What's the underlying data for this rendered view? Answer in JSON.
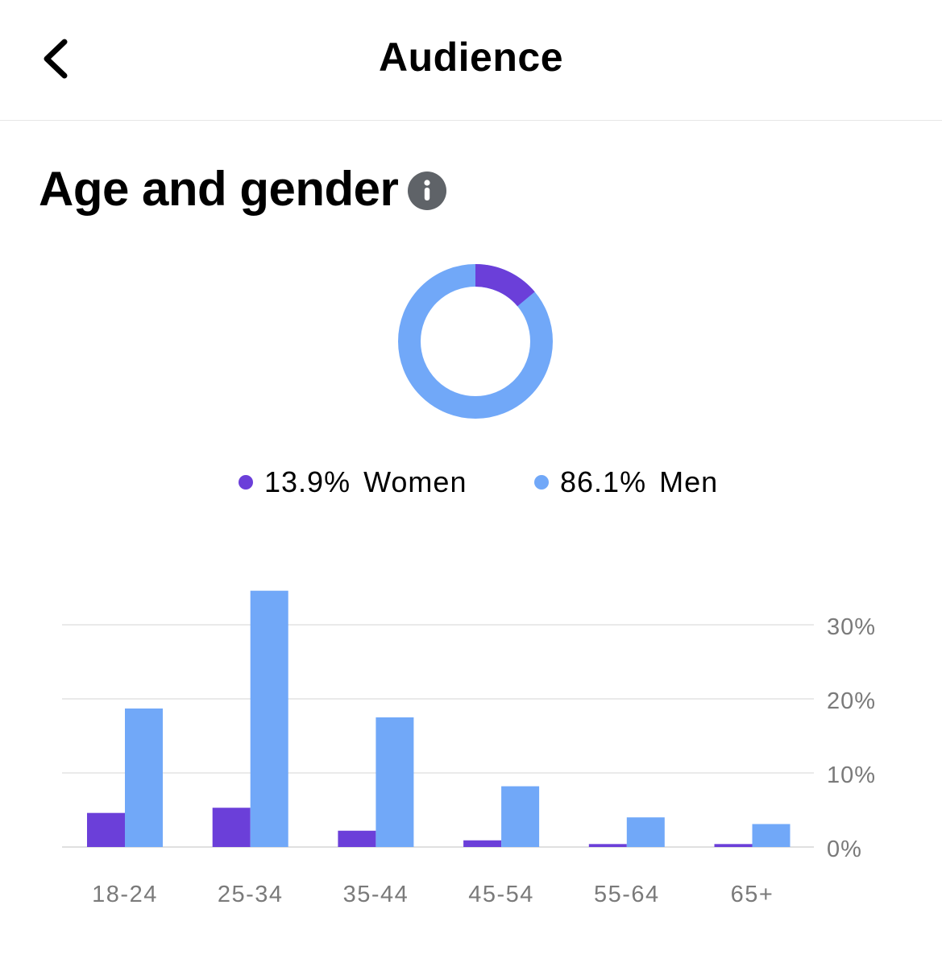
{
  "header": {
    "title": "Audience",
    "back_icon": "chevron-left-icon"
  },
  "section": {
    "title": "Age and gender",
    "info_icon": "info-icon"
  },
  "gender": {
    "women": {
      "pct_label": "13.9%",
      "label": "Women",
      "value": 13.9,
      "color": "#6b3fd9"
    },
    "men": {
      "pct_label": "86.1%",
      "label": "Men",
      "value": 86.1,
      "color": "#71a8f8"
    }
  },
  "chart_data": {
    "type": "bar",
    "categories": [
      "18-24",
      "25-34",
      "35-44",
      "45-54",
      "55-64",
      "65+"
    ],
    "series": [
      {
        "name": "Women",
        "color": "#6b3fd9",
        "values": [
          4.6,
          5.3,
          2.2,
          0.9,
          0.4,
          0.4
        ]
      },
      {
        "name": "Men",
        "color": "#71a8f8",
        "values": [
          18.7,
          34.6,
          17.5,
          8.2,
          4.0,
          3.1
        ]
      }
    ],
    "yticks": [
      0,
      10,
      20,
      30
    ],
    "ytick_labels": [
      "0%",
      "10%",
      "20%",
      "30%"
    ],
    "ylim": [
      0,
      35
    ],
    "grid": true,
    "y_axis_position": "right"
  }
}
